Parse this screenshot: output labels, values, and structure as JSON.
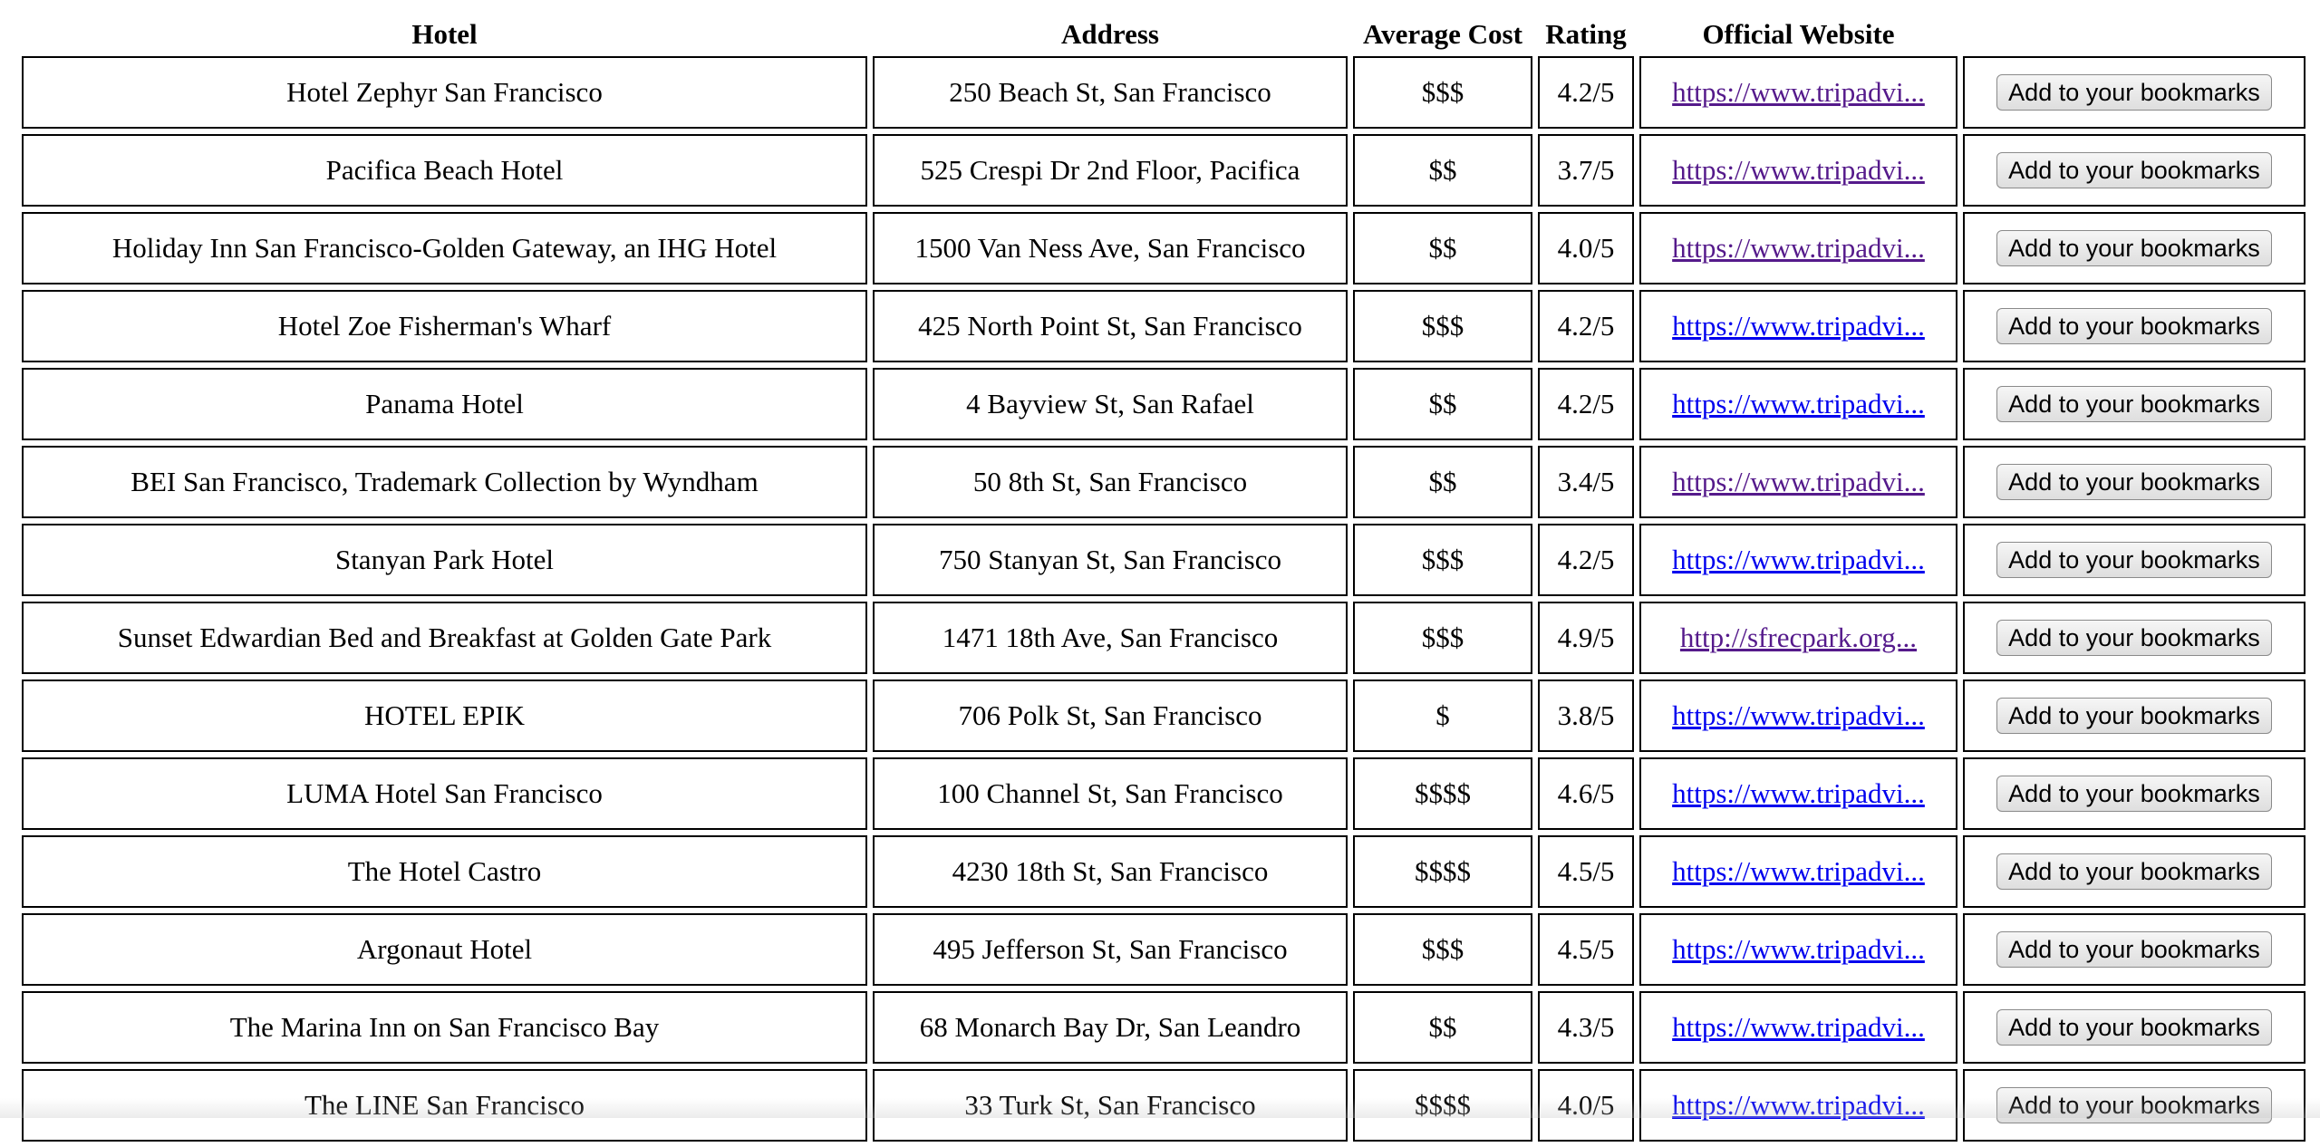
{
  "table": {
    "headers": {
      "hotel": "Hotel",
      "address": "Address",
      "cost": "Average Cost",
      "rating": "Rating",
      "website": "Official Website"
    },
    "bookmark_label": "Add to your bookmarks",
    "link_colors": {
      "unvisited": "#0000ee",
      "visited": "#551a8b"
    },
    "rows": [
      {
        "hotel": "Hotel Zephyr San Francisco",
        "address": "250 Beach St, San Francisco",
        "cost": "$$$",
        "rating": "4.2/5",
        "website": "https://www.tripadvi...",
        "visited": true
      },
      {
        "hotel": "Pacifica Beach Hotel",
        "address": "525 Crespi Dr 2nd Floor, Pacifica",
        "cost": "$$",
        "rating": "3.7/5",
        "website": "https://www.tripadvi...",
        "visited": true
      },
      {
        "hotel": "Holiday Inn San Francisco-Golden Gateway, an IHG Hotel",
        "address": "1500 Van Ness Ave, San Francisco",
        "cost": "$$",
        "rating": "4.0/5",
        "website": "https://www.tripadvi...",
        "visited": true
      },
      {
        "hotel": "Hotel Zoe Fisherman's Wharf",
        "address": "425 North Point St, San Francisco",
        "cost": "$$$",
        "rating": "4.2/5",
        "website": "https://www.tripadvi...",
        "visited": false
      },
      {
        "hotel": "Panama Hotel",
        "address": "4 Bayview St, San Rafael",
        "cost": "$$",
        "rating": "4.2/5",
        "website": "https://www.tripadvi...",
        "visited": false
      },
      {
        "hotel": "BEI San Francisco, Trademark Collection by Wyndham",
        "address": "50 8th St, San Francisco",
        "cost": "$$",
        "rating": "3.4/5",
        "website": "https://www.tripadvi...",
        "visited": true
      },
      {
        "hotel": "Stanyan Park Hotel",
        "address": "750 Stanyan St, San Francisco",
        "cost": "$$$",
        "rating": "4.2/5",
        "website": "https://www.tripadvi...",
        "visited": false
      },
      {
        "hotel": "Sunset Edwardian Bed and Breakfast at Golden Gate Park",
        "address": "1471 18th Ave, San Francisco",
        "cost": "$$$",
        "rating": "4.9/5",
        "website": "http://sfrecpark.org...",
        "visited": true
      },
      {
        "hotel": "HOTEL EPIK",
        "address": "706 Polk St, San Francisco",
        "cost": "$",
        "rating": "3.8/5",
        "website": "https://www.tripadvi...",
        "visited": false
      },
      {
        "hotel": "LUMA Hotel San Francisco",
        "address": "100 Channel St, San Francisco",
        "cost": "$$$$",
        "rating": "4.6/5",
        "website": "https://www.tripadvi...",
        "visited": false
      },
      {
        "hotel": "The Hotel Castro",
        "address": "4230 18th St, San Francisco",
        "cost": "$$$$",
        "rating": "4.5/5",
        "website": "https://www.tripadvi...",
        "visited": false
      },
      {
        "hotel": "Argonaut Hotel",
        "address": "495 Jefferson St, San Francisco",
        "cost": "$$$",
        "rating": "4.5/5",
        "website": "https://www.tripadvi...",
        "visited": false
      },
      {
        "hotel": "The Marina Inn on San Francisco Bay",
        "address": "68 Monarch Bay Dr, San Leandro",
        "cost": "$$",
        "rating": "4.3/5",
        "website": "https://www.tripadvi...",
        "visited": false
      },
      {
        "hotel": "The LINE San Francisco",
        "address": "33 Turk St, San Francisco",
        "cost": "$$$$",
        "rating": "4.0/5",
        "website": "https://www.tripadvi...",
        "visited": false
      }
    ]
  }
}
